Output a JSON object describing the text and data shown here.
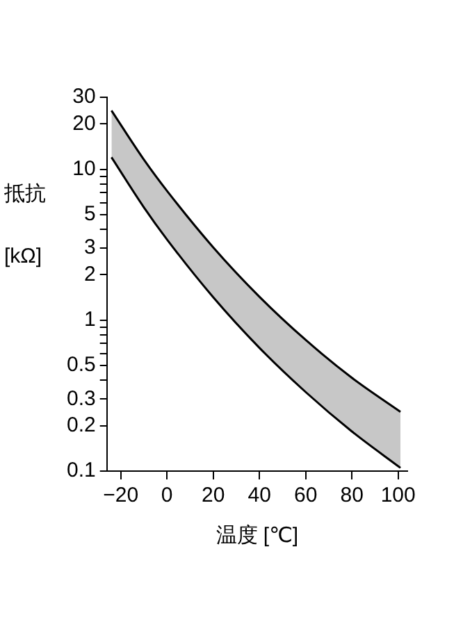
{
  "chart_data": {
    "type": "line",
    "xlabel": "温度 [℃]",
    "ylabel": "抵抗 [kΩ]",
    "x": [
      -24,
      -10,
      0,
      20,
      40,
      60,
      80,
      101
    ],
    "series": [
      {
        "type": "line",
        "color": "#000000",
        "values": [
          24.5,
          11.6,
          7.2,
          3.04,
          1.43,
          0.74,
          0.415,
          0.247
        ],
        "upper": [
          24.5,
          11.6,
          7.2,
          3.04,
          1.43,
          0.74,
          0.415,
          0.247
        ],
        "lower": [
          12,
          5.6,
          3.43,
          1.42,
          0.656,
          0.334,
          0.183,
          0.105
        ]
      },
      {
        "type": "line",
        "color": "#000000",
        "values": [
          12,
          5.6,
          3.43,
          1.42,
          0.656,
          0.334,
          0.183,
          0.105
        ]
      }
    ],
    "xlim": [
      -26,
      104
    ],
    "xticks": [
      -20,
      0,
      20,
      40,
      60,
      80,
      100
    ],
    "ylim": [
      0.1,
      30
    ],
    "yticks": [
      0.1,
      0.2,
      0.3,
      {
        "value": 0.4,
        "label": null
      },
      0.5,
      {
        "value": 0.6,
        "label": null
      },
      {
        "value": 0.7,
        "label": null
      },
      {
        "value": 0.8,
        "label": null
      },
      {
        "value": 0.9,
        "label": null
      },
      1,
      2,
      3,
      {
        "value": 4,
        "label": null
      },
      5,
      {
        "value": 6,
        "label": null
      },
      {
        "value": 7,
        "label": null
      },
      {
        "value": 8,
        "label": null
      },
      {
        "value": 9,
        "label": null
      },
      10,
      20,
      30
    ],
    "log": "y",
    "legend": false,
    "marker": "none"
  }
}
